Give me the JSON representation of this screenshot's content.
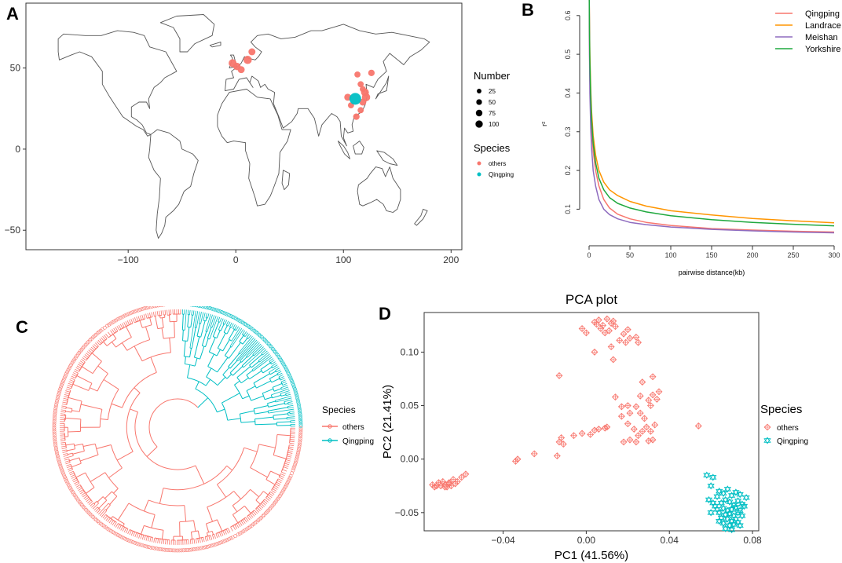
{
  "panels": {
    "a": "A",
    "b": "B",
    "c": "C",
    "d": "D"
  },
  "chart_data": [
    {
      "type": "scatter",
      "subtype": "world-map-bubble",
      "panel": "A",
      "x_ticks": [
        -100,
        0,
        100,
        200
      ],
      "y_ticks": [
        -50,
        0,
        50
      ],
      "xlim": [
        -195,
        210
      ],
      "ylim": [
        -62,
        90
      ],
      "size_legend": {
        "title": "Number",
        "values": [
          25,
          50,
          75,
          100
        ]
      },
      "color_legend": {
        "title": "Species",
        "items": [
          {
            "label": "others",
            "color": "#F8766D"
          },
          {
            "label": "Qingping",
            "color": "#00BFC4"
          }
        ]
      },
      "points": [
        {
          "lon": -3,
          "lat": 53,
          "n": 30,
          "group": "others"
        },
        {
          "lon": 1,
          "lat": 51,
          "n": 25,
          "group": "others"
        },
        {
          "lon": 5,
          "lat": 49,
          "n": 20,
          "group": "others"
        },
        {
          "lon": 11,
          "lat": 55,
          "n": 35,
          "group": "others"
        },
        {
          "lon": 15,
          "lat": 60,
          "n": 20,
          "group": "others"
        },
        {
          "lon": 113,
          "lat": 46,
          "n": 12,
          "group": "others"
        },
        {
          "lon": 126,
          "lat": 47,
          "n": 15,
          "group": "others"
        },
        {
          "lon": 116,
          "lat": 40,
          "n": 12,
          "group": "others"
        },
        {
          "lon": 118,
          "lat": 37,
          "n": 12,
          "group": "others"
        },
        {
          "lon": 104,
          "lat": 32,
          "n": 20,
          "group": "others"
        },
        {
          "lon": 120,
          "lat": 35,
          "n": 30,
          "group": "others"
        },
        {
          "lon": 121,
          "lat": 32,
          "n": 35,
          "group": "others"
        },
        {
          "lon": 118,
          "lat": 29,
          "n": 20,
          "group": "others"
        },
        {
          "lon": 107,
          "lat": 27,
          "n": 12,
          "group": "others"
        },
        {
          "lon": 116,
          "lat": 24,
          "n": 12,
          "group": "others"
        },
        {
          "lon": 112,
          "lat": 20,
          "n": 15,
          "group": "others"
        },
        {
          "lon": 111,
          "lat": 31,
          "n": 100,
          "group": "Qingping"
        }
      ]
    },
    {
      "type": "line",
      "panel": "B",
      "xlabel": "pairwise distance(kb)",
      "ylabel": "r²",
      "x_ticks": [
        0,
        50,
        100,
        150,
        200,
        250,
        300
      ],
      "y_ticks": [
        0.1,
        0.2,
        0.3,
        0.4,
        0.5,
        0.6
      ],
      "xlim": [
        0,
        300
      ],
      "ylim": [
        0.04,
        0.63
      ],
      "x": [
        0.2,
        0.5,
        1,
        2,
        3,
        5,
        8,
        12,
        18,
        25,
        35,
        50,
        70,
        100,
        150,
        200,
        250,
        300
      ],
      "series": [
        {
          "name": "Qingping",
          "color": "#F8766D",
          "values": [
            0.65,
            0.53,
            0.44,
            0.36,
            0.31,
            0.25,
            0.2,
            0.16,
            0.125,
            0.103,
            0.087,
            0.075,
            0.066,
            0.058,
            0.05,
            0.046,
            0.043,
            0.041
          ]
        },
        {
          "name": "Landrace",
          "color": "#FF9500",
          "values": [
            0.65,
            0.58,
            0.5,
            0.41,
            0.355,
            0.29,
            0.24,
            0.2,
            0.17,
            0.15,
            0.135,
            0.12,
            0.108,
            0.096,
            0.085,
            0.076,
            0.07,
            0.065
          ]
        },
        {
          "name": "Meishan",
          "color": "#8E6BBF",
          "values": [
            0.65,
            0.5,
            0.4,
            0.31,
            0.26,
            0.2,
            0.16,
            0.125,
            0.1,
            0.086,
            0.075,
            0.066,
            0.06,
            0.054,
            0.048,
            0.044,
            0.041,
            0.039
          ]
        },
        {
          "name": "Yorkshire",
          "color": "#1FA83E",
          "values": [
            0.65,
            0.56,
            0.48,
            0.39,
            0.335,
            0.27,
            0.22,
            0.18,
            0.15,
            0.13,
            0.115,
            0.103,
            0.093,
            0.083,
            0.073,
            0.066,
            0.061,
            0.057
          ]
        }
      ]
    },
    {
      "type": "tree",
      "subtype": "circular-dendrogram",
      "panel": "C",
      "legend": {
        "title": "Species",
        "items": [
          {
            "label": "others",
            "color": "#F8766D"
          },
          {
            "label": "Qingping",
            "color": "#00BFC4"
          }
        ]
      },
      "clades": [
        {
          "group": "Qingping",
          "tips": 95,
          "sector_deg": [
            -88,
            0
          ]
        },
        {
          "group": "others",
          "tips": 285,
          "sector_deg": [
            0,
            272
          ]
        }
      ]
    },
    {
      "type": "scatter",
      "panel": "D",
      "title": "PCA plot",
      "xlabel": "PC1 (41.56%)",
      "ylabel": "PC2 (21.41%)",
      "x_ticks": [
        -0.04,
        0.0,
        0.04,
        0.08
      ],
      "x_tick_labels": [
        "−0.04",
        "0.00",
        "0.04",
        "0.08"
      ],
      "y_ticks": [
        -0.05,
        0.0,
        0.05,
        0.1
      ],
      "y_tick_labels": [
        "−0.05",
        "0.00",
        "0.05",
        "0.10"
      ],
      "xlim": [
        -0.078,
        0.083
      ],
      "ylim": [
        -0.067,
        0.137
      ],
      "legend": {
        "title": "Species",
        "items": [
          {
            "label": "others",
            "color": "#F8766D"
          },
          {
            "label": "Qingping",
            "color": "#00BFC4"
          }
        ]
      },
      "series": [
        {
          "name": "others",
          "color": "#F8766D",
          "points": [
            [
              0.004,
              0.128
            ],
            [
              0.006,
              0.13
            ],
            [
              0.008,
              0.125
            ],
            [
              0.01,
              0.131
            ],
            [
              0.012,
              0.127
            ],
            [
              0.007,
              0.122
            ],
            [
              0.011,
              0.12
            ],
            [
              0.014,
              0.124
            ],
            [
              0.009,
              0.118
            ],
            [
              0.005,
              0.126
            ],
            [
              0.013,
              0.129
            ],
            [
              -0.002,
              0.122
            ],
            [
              0.0,
              0.118
            ],
            [
              0.018,
              0.117
            ],
            [
              0.02,
              0.121
            ],
            [
              0.021,
              0.113
            ],
            [
              0.024,
              0.114
            ],
            [
              0.016,
              0.111
            ],
            [
              0.012,
              0.105
            ],
            [
              0.025,
              0.109
            ],
            [
              0.019,
              0.109
            ],
            [
              0.004,
              0.1
            ],
            [
              0.013,
              0.093
            ],
            [
              0.032,
              0.077
            ],
            [
              -0.013,
              0.078
            ],
            [
              0.027,
              0.072
            ],
            [
              0.035,
              0.063
            ],
            [
              0.032,
              0.06
            ],
            [
              0.026,
              0.059
            ],
            [
              0.034,
              0.056
            ],
            [
              0.014,
              0.058
            ],
            [
              0.03,
              0.055
            ],
            [
              0.024,
              0.049
            ],
            [
              0.031,
              0.05
            ],
            [
              0.017,
              0.049
            ],
            [
              0.02,
              0.05
            ],
            [
              0.026,
              0.043
            ],
            [
              0.021,
              0.043
            ],
            [
              0.017,
              0.04
            ],
            [
              0.028,
              0.038
            ],
            [
              0.02,
              0.033
            ],
            [
              0.029,
              0.03
            ],
            [
              0.033,
              0.032
            ],
            [
              0.023,
              0.028
            ],
            [
              0.027,
              0.026
            ],
            [
              0.031,
              0.026
            ],
            [
              0.025,
              0.022
            ],
            [
              0.021,
              0.018
            ],
            [
              0.03,
              0.017
            ],
            [
              0.018,
              0.016
            ],
            [
              0.024,
              0.016
            ],
            [
              0.032,
              0.018
            ],
            [
              0.054,
              0.031
            ],
            [
              0.01,
              0.03
            ],
            [
              0.006,
              0.028
            ],
            [
              -0.002,
              0.024
            ],
            [
              0.002,
              0.023
            ],
            [
              0.009,
              0.029
            ],
            [
              0.004,
              0.027
            ],
            [
              -0.006,
              0.022
            ],
            [
              -0.012,
              0.02
            ],
            [
              -0.013,
              0.016
            ],
            [
              -0.011,
              0.014
            ],
            [
              -0.014,
              0.003
            ],
            [
              -0.025,
              0.005
            ],
            [
              -0.033,
              0.0
            ],
            [
              -0.034,
              -0.002
            ],
            [
              -0.058,
              -0.014
            ],
            [
              -0.06,
              -0.017
            ],
            [
              -0.064,
              -0.019
            ],
            [
              -0.066,
              -0.022
            ],
            [
              -0.068,
              -0.024
            ],
            [
              -0.07,
              -0.025
            ],
            [
              -0.072,
              -0.025
            ],
            [
              -0.074,
              -0.024
            ],
            [
              -0.069,
              -0.021
            ],
            [
              -0.065,
              -0.025
            ],
            [
              -0.063,
              -0.023
            ],
            [
              -0.071,
              -0.022
            ],
            [
              -0.067,
              -0.026
            ],
            [
              -0.062,
              -0.021
            ],
            [
              -0.073,
              -0.026
            ],
            [
              -0.066,
              -0.023
            ],
            [
              -0.068,
              -0.026
            ]
          ]
        },
        {
          "name": "Qingping",
          "color": "#00BFC4",
          "points": [
            [
              0.058,
              -0.015
            ],
            [
              0.061,
              -0.017
            ],
            [
              0.06,
              -0.025
            ],
            [
              0.064,
              -0.03
            ],
            [
              0.063,
              -0.035
            ],
            [
              0.066,
              -0.032
            ],
            [
              0.068,
              -0.028
            ],
            [
              0.07,
              -0.034
            ],
            [
              0.072,
              -0.031
            ],
            [
              0.074,
              -0.033
            ],
            [
              0.067,
              -0.038
            ],
            [
              0.065,
              -0.041
            ],
            [
              0.069,
              -0.04
            ],
            [
              0.071,
              -0.043
            ],
            [
              0.073,
              -0.039
            ],
            [
              0.075,
              -0.042
            ],
            [
              0.062,
              -0.044
            ],
            [
              0.066,
              -0.046
            ],
            [
              0.068,
              -0.048
            ],
            [
              0.07,
              -0.047
            ],
            [
              0.072,
              -0.045
            ],
            [
              0.074,
              -0.048
            ],
            [
              0.076,
              -0.044
            ],
            [
              0.064,
              -0.05
            ],
            [
              0.067,
              -0.052
            ],
            [
              0.069,
              -0.051
            ],
            [
              0.071,
              -0.053
            ],
            [
              0.073,
              -0.05
            ],
            [
              0.065,
              -0.055
            ],
            [
              0.068,
              -0.056
            ],
            [
              0.07,
              -0.058
            ],
            [
              0.072,
              -0.056
            ],
            [
              0.066,
              -0.06
            ],
            [
              0.069,
              -0.062
            ],
            [
              0.071,
              -0.061
            ],
            [
              0.073,
              -0.059
            ],
            [
              0.067,
              -0.065
            ],
            [
              0.07,
              -0.066
            ],
            [
              0.063,
              -0.047
            ],
            [
              0.061,
              -0.041
            ],
            [
              0.075,
              -0.053
            ],
            [
              0.059,
              -0.038
            ],
            [
              0.077,
              -0.036
            ],
            [
              0.064,
              -0.058
            ],
            [
              0.074,
              -0.062
            ],
            [
              0.06,
              -0.05
            ]
          ]
        }
      ]
    }
  ]
}
